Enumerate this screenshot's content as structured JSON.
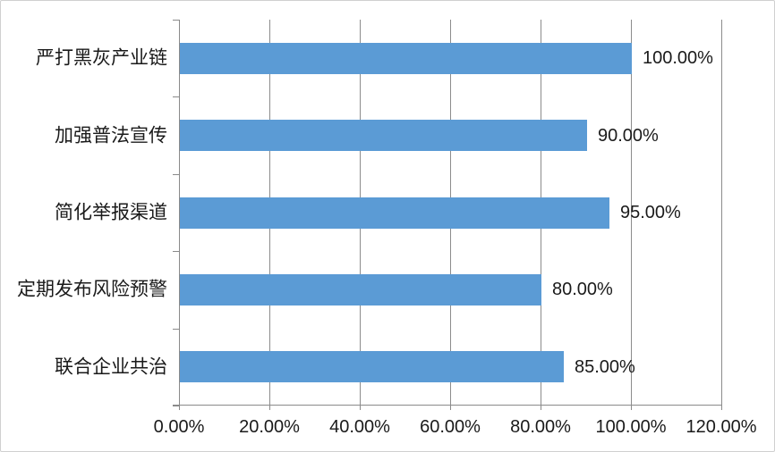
{
  "chart_data": {
    "type": "bar",
    "orientation": "horizontal",
    "title": "",
    "xlabel": "",
    "ylabel": "",
    "categories": [
      "严打黑灰产业链",
      "加强普法宣传",
      "简化举报渠道",
      "定期发布风险预警",
      "联合企业共治"
    ],
    "values": [
      100.0,
      90.0,
      95.0,
      80.0,
      85.0
    ],
    "data_labels": [
      "100.00%",
      "90.00%",
      "95.00%",
      "80.00%",
      "85.00%"
    ],
    "x_tick_labels": [
      "0.00%",
      "20.00%",
      "40.00%",
      "60.00%",
      "80.00%",
      "100.00%",
      "120.00%"
    ],
    "x_tick_values": [
      0,
      20,
      40,
      60,
      80,
      100,
      120
    ],
    "xlim": [
      0,
      120
    ],
    "grid": true,
    "legend": "none",
    "colors": {
      "bar_fill": "#5B9BD5",
      "gridline": "#8C8C8C",
      "axis_line": "#8A8A8A",
      "tick_mark": "#8A8A8A",
      "label_text": "#1A1A1A",
      "frame_border": "#D0D0D0",
      "background": "#FFFFFF"
    }
  }
}
